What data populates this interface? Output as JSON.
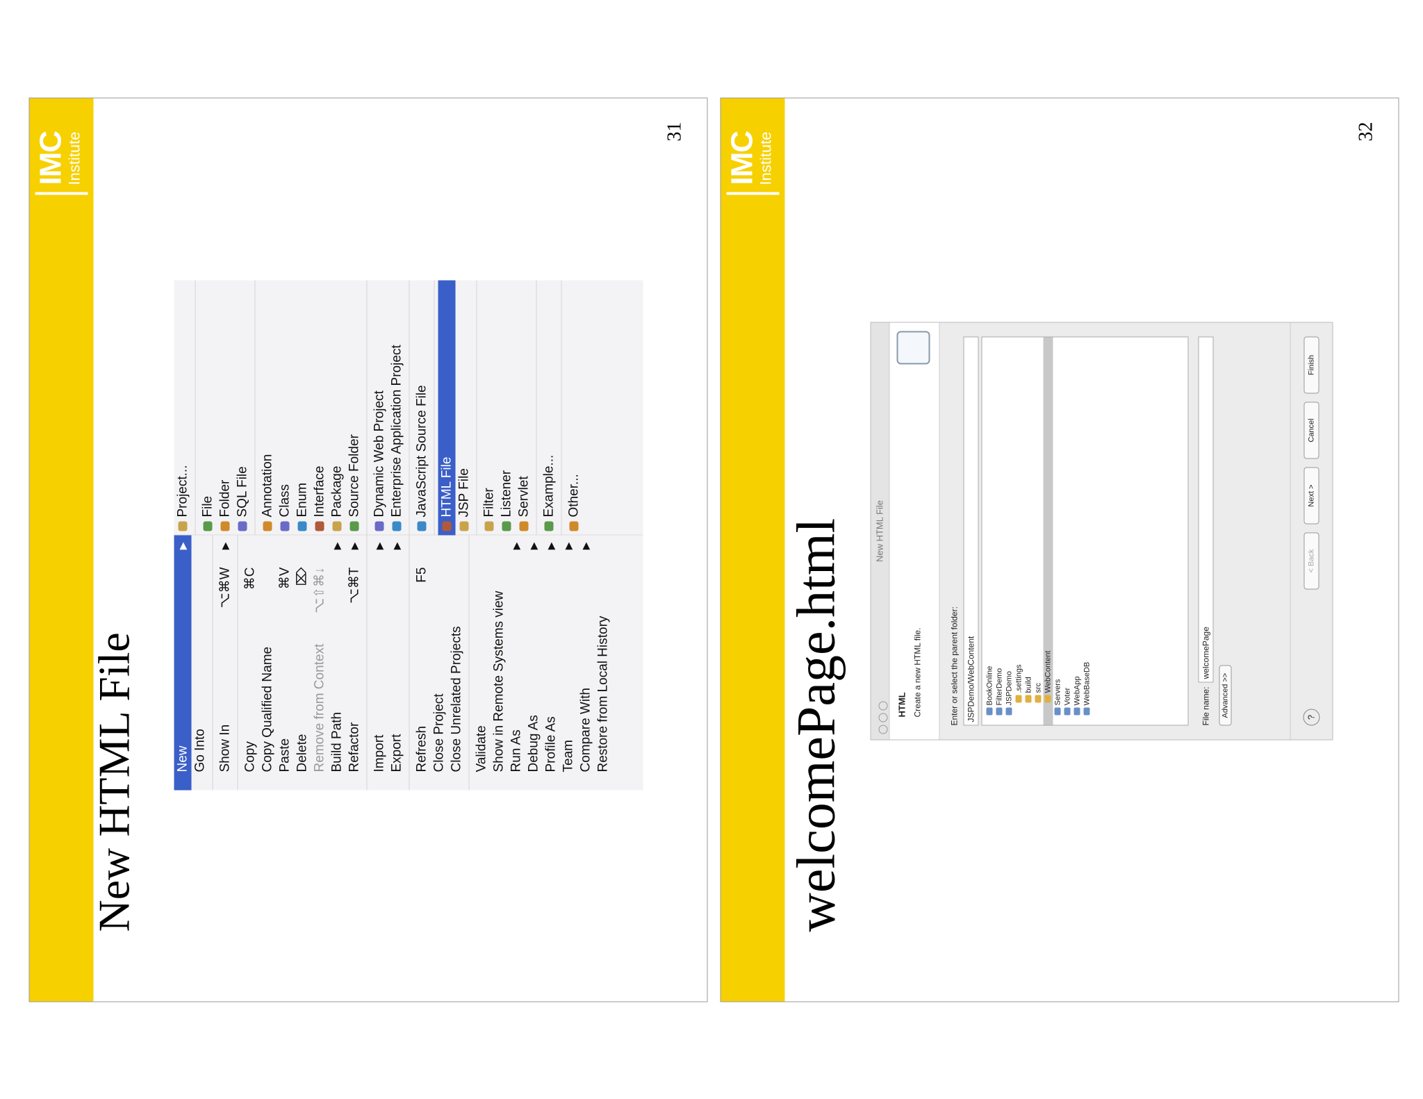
{
  "slides": [
    {
      "title": "New HTML File",
      "page_number": "31",
      "logo": {
        "name": "IMC",
        "sub": "Institute"
      },
      "menu": {
        "groups": [
          [
            {
              "label": "New",
              "arrow": "▶",
              "selected": true
            },
            {
              "label": "Go Into"
            }
          ],
          [
            {
              "label": "Show In",
              "shortcut": "⌥⌘W",
              "arrow": "▶"
            }
          ],
          [
            {
              "label": "Copy",
              "shortcut": "⌘C"
            },
            {
              "label": "Copy Qualified Name"
            },
            {
              "label": "Paste",
              "shortcut": "⌘V"
            },
            {
              "label": "Delete",
              "shortcut": "⌦"
            },
            {
              "label": "Remove from Context",
              "shortcut": "⌥⇧⌘↓",
              "disabled": true
            },
            {
              "label": "Build Path",
              "arrow": "▶"
            },
            {
              "label": "Refactor",
              "shortcut": "⌥⌘T",
              "arrow": "▶"
            }
          ],
          [
            {
              "label": "Import",
              "arrow": "▶"
            },
            {
              "label": "Export",
              "arrow": "▶"
            }
          ],
          [
            {
              "label": "Refresh",
              "shortcut": "F5"
            },
            {
              "label": "Close Project"
            },
            {
              "label": "Close Unrelated Projects"
            }
          ],
          [
            {
              "label": "Validate"
            },
            {
              "label": "Show in Remote Systems view"
            },
            {
              "label": "Run As",
              "arrow": "▶"
            },
            {
              "label": "Debug As",
              "arrow": "▶"
            },
            {
              "label": "Profile As",
              "arrow": "▶"
            },
            {
              "label": "Team",
              "arrow": "▶"
            },
            {
              "label": "Compare With",
              "arrow": "▶"
            },
            {
              "label": "Restore from Local History"
            }
          ]
        ],
        "submenu": [
          [
            {
              "label": "Project..."
            }
          ],
          [
            {
              "label": "File"
            },
            {
              "label": "Folder"
            },
            {
              "label": "SQL File"
            }
          ],
          [
            {
              "label": "Annotation"
            },
            {
              "label": "Class"
            },
            {
              "label": "Enum"
            },
            {
              "label": "Interface"
            },
            {
              "label": "Package"
            },
            {
              "label": "Source Folder"
            }
          ],
          [
            {
              "label": "Dynamic Web Project"
            },
            {
              "label": "Enterprise Application Project"
            }
          ],
          [
            {
              "label": "JavaScript Source File"
            }
          ],
          [
            {
              "label": "HTML File",
              "selected": true
            },
            {
              "label": "JSP File"
            }
          ],
          [
            {
              "label": "Filter"
            },
            {
              "label": "Listener"
            },
            {
              "label": "Servlet"
            }
          ],
          [
            {
              "label": "Example..."
            }
          ],
          [
            {
              "label": "Other..."
            }
          ]
        ]
      }
    },
    {
      "title": "welcomePage.html",
      "page_number": "32",
      "logo": {
        "name": "IMC",
        "sub": "Institute"
      },
      "dialog": {
        "window_title": "New HTML File",
        "heading": "HTML",
        "description": "Create a new HTML file.",
        "folder_label": "Enter or select the parent folder:",
        "folder_value": "JSPDemo/WebContent",
        "tree": [
          {
            "label": "BookOnline",
            "level": 0
          },
          {
            "label": "FilterDemo",
            "level": 0
          },
          {
            "label": "JSPDemo",
            "level": 0
          },
          {
            "label": ".settings",
            "level": 1
          },
          {
            "label": "build",
            "level": 1
          },
          {
            "label": "src",
            "level": 1
          },
          {
            "label": "WebContent",
            "level": 1,
            "selected": true
          },
          {
            "label": "Servers",
            "level": 0
          },
          {
            "label": "Voter",
            "level": 0
          },
          {
            "label": "WebApp",
            "level": 0
          },
          {
            "label": "WebBaseDB",
            "level": 0
          }
        ],
        "file_label": "File name:",
        "file_value": "welcomePage",
        "advanced": "Advanced >>",
        "help": "?",
        "buttons": [
          "< Back",
          "Next >",
          "Cancel",
          "Finish"
        ]
      }
    }
  ]
}
